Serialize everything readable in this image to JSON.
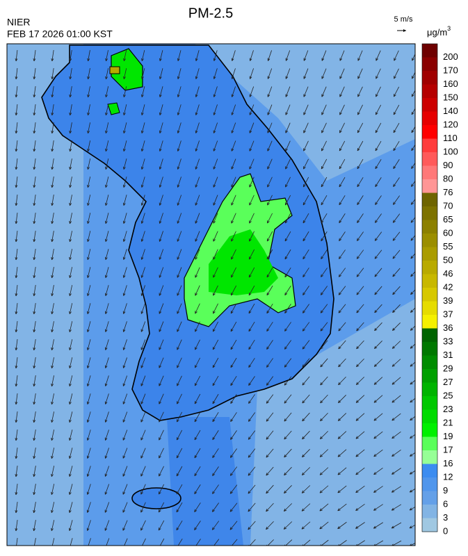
{
  "header": {
    "title": "PM-2.5",
    "agency": "NIER",
    "timestamp": "FEB 17 2026 01:00 KST"
  },
  "wind_scale": {
    "label": "5 m/s"
  },
  "legend": {
    "unit": "μg/m",
    "unit_exponent": "3",
    "levels": [
      {
        "label": "200",
        "color": "#6e0000"
      },
      {
        "label": "170",
        "color": "#8a0000"
      },
      {
        "label": "160",
        "color": "#a00000"
      },
      {
        "label": "150",
        "color": "#b50000"
      },
      {
        "label": "140",
        "color": "#cc0000"
      },
      {
        "label": "120",
        "color": "#e60000"
      },
      {
        "label": "110",
        "color": "#ff0000"
      },
      {
        "label": "100",
        "color": "#ff3c3c"
      },
      {
        "label": "90",
        "color": "#ff5a5a"
      },
      {
        "label": "80",
        "color": "#ff7878"
      },
      {
        "label": "76",
        "color": "#ff9696"
      },
      {
        "label": "70",
        "color": "#6e6400"
      },
      {
        "label": "65",
        "color": "#7d7200"
      },
      {
        "label": "60",
        "color": "#8c8000"
      },
      {
        "label": "55",
        "color": "#9b8e00"
      },
      {
        "label": "50",
        "color": "#aa9c00"
      },
      {
        "label": "46",
        "color": "#b9aa00"
      },
      {
        "label": "42",
        "color": "#c8b800"
      },
      {
        "label": "39",
        "color": "#d7c800"
      },
      {
        "label": "37",
        "color": "#e6dc00"
      },
      {
        "label": "36",
        "color": "#f5f000"
      },
      {
        "label": "33",
        "color": "#006400"
      },
      {
        "label": "31",
        "color": "#007800"
      },
      {
        "label": "29",
        "color": "#008c00"
      },
      {
        "label": "27",
        "color": "#00a000"
      },
      {
        "label": "25",
        "color": "#00b400"
      },
      {
        "label": "23",
        "color": "#00c800"
      },
      {
        "label": "21",
        "color": "#00dc00"
      },
      {
        "label": "19",
        "color": "#00f000"
      },
      {
        "label": "17",
        "color": "#5aff5a"
      },
      {
        "label": "16",
        "color": "#96ff96"
      },
      {
        "label": "12",
        "color": "#3c8cf0"
      },
      {
        "label": "9",
        "color": "#5096ec"
      },
      {
        "label": "6",
        "color": "#64a0e8"
      },
      {
        "label": "3",
        "color": "#82b4e4"
      },
      {
        "label": "0",
        "color": "#a0c8e2"
      }
    ]
  }
}
